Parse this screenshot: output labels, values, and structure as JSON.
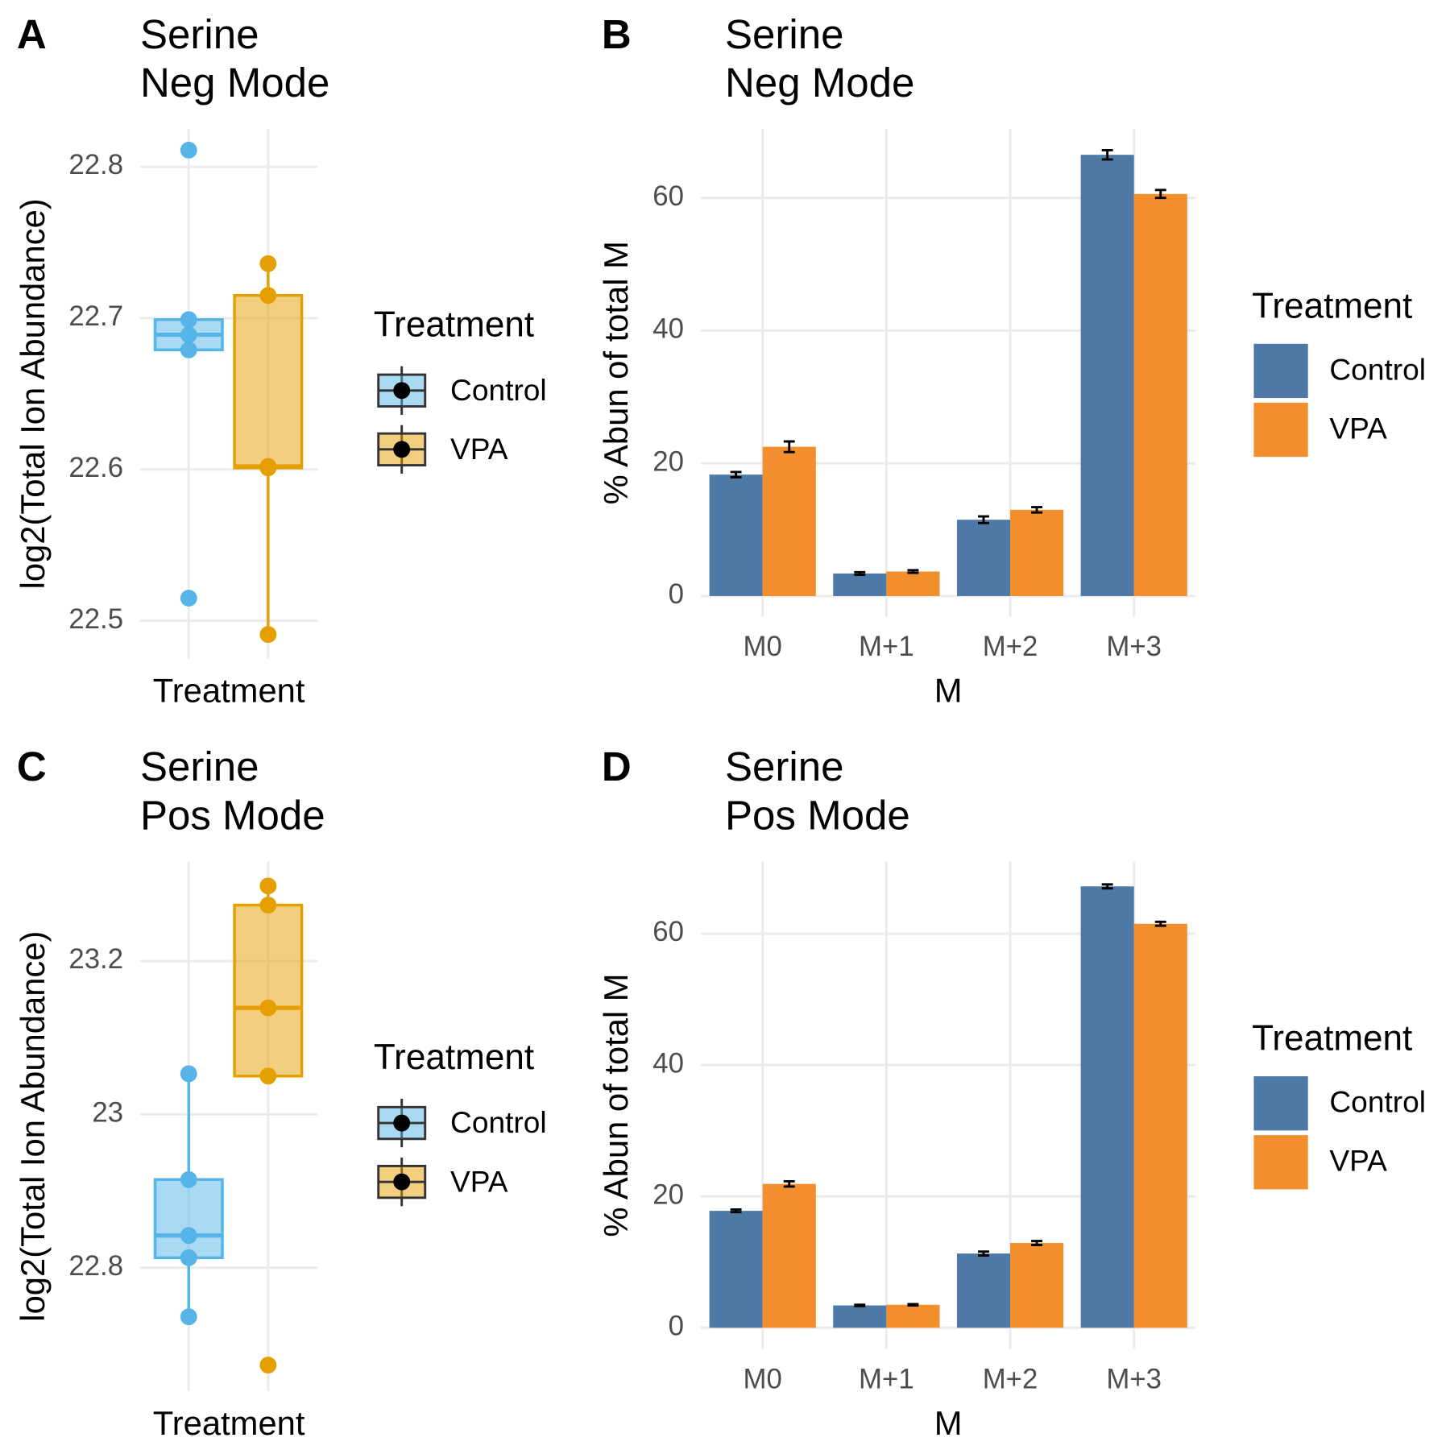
{
  "chart_data": [
    {
      "type": "box",
      "tag": "A",
      "title": [
        "Serine",
        "Neg Mode"
      ],
      "x_label": "Treatment",
      "y_label": "log2(Total Ion Abundance)",
      "ylim": [
        22.475,
        22.825
      ],
      "yticks": [
        22.5,
        22.6,
        22.7,
        22.8
      ],
      "grid": true,
      "legend_title": "Treatment",
      "series": [
        {
          "name": "Control",
          "color": "#56b4e9",
          "q1": 22.679,
          "median": 22.689,
          "q3": 22.699,
          "whisker_low": 22.679,
          "whisker_high": 22.699,
          "points": [
            22.811,
            22.699,
            22.689,
            22.679,
            22.515
          ]
        },
        {
          "name": "VPA",
          "color": "#e69f00",
          "q1": 22.601,
          "median": 22.602,
          "q3": 22.715,
          "whisker_low": 22.491,
          "whisker_high": 22.736,
          "points": [
            22.736,
            22.715,
            22.602,
            22.601,
            22.491
          ]
        }
      ]
    },
    {
      "type": "bar",
      "tag": "B",
      "title": [
        "Serine",
        "Neg Mode"
      ],
      "x_label": "M",
      "y_label": "% Abun of total M",
      "ylim": [
        -3.1,
        70.4
      ],
      "yticks": [
        0,
        20,
        40,
        60
      ],
      "grid": true,
      "legend_title": "Treatment",
      "categories": [
        "M0",
        "M+1",
        "M+2",
        "M+3"
      ],
      "series": [
        {
          "name": "Control",
          "color": "#4e79a7",
          "values": [
            18.3,
            3.4,
            11.5,
            66.5
          ],
          "errors": [
            0.4,
            0.2,
            0.5,
            0.7
          ]
        },
        {
          "name": "VPA",
          "color": "#f28e2b",
          "values": [
            22.5,
            3.7,
            13.0,
            60.6
          ],
          "errors": [
            0.8,
            0.2,
            0.4,
            0.6
          ]
        }
      ]
    },
    {
      "type": "box",
      "tag": "C",
      "title": [
        "Serine",
        "Pos Mode"
      ],
      "x_label": "Treatment",
      "y_label": "log2(Total Ion Abundance)",
      "ylim": [
        22.639,
        23.33
      ],
      "yticks": [
        22.8,
        23.0,
        23.2
      ],
      "grid": true,
      "legend_title": "Treatment",
      "series": [
        {
          "name": "Control",
          "color": "#56b4e9",
          "q1": 22.813,
          "median": 22.842,
          "q3": 22.915,
          "whisker_low": 22.736,
          "whisker_high": 23.053,
          "points": [
            23.053,
            22.915,
            22.842,
            22.813,
            22.736
          ]
        },
        {
          "name": "VPA",
          "color": "#e69f00",
          "q1": 23.05,
          "median": 23.139,
          "q3": 23.273,
          "whisker_low": 23.05,
          "whisker_high": 23.298,
          "points": [
            23.298,
            23.273,
            23.139,
            23.05,
            22.673
          ]
        }
      ]
    },
    {
      "type": "bar",
      "tag": "D",
      "title": [
        "Serine",
        "Pos Mode"
      ],
      "x_label": "M",
      "y_label": "% Abun of total M",
      "ylim": [
        -3.25,
        71
      ],
      "yticks": [
        0,
        20,
        40,
        60
      ],
      "grid": true,
      "legend_title": "Treatment",
      "categories": [
        "M0",
        "M+1",
        "M+2",
        "M+3"
      ],
      "series": [
        {
          "name": "Control",
          "color": "#4e79a7",
          "values": [
            17.8,
            3.4,
            11.3,
            67.2
          ],
          "errors": [
            0.2,
            0.1,
            0.3,
            0.3
          ]
        },
        {
          "name": "VPA",
          "color": "#f28e2b",
          "values": [
            21.9,
            3.5,
            12.9,
            61.5
          ],
          "errors": [
            0.4,
            0.1,
            0.3,
            0.3
          ]
        }
      ]
    }
  ]
}
